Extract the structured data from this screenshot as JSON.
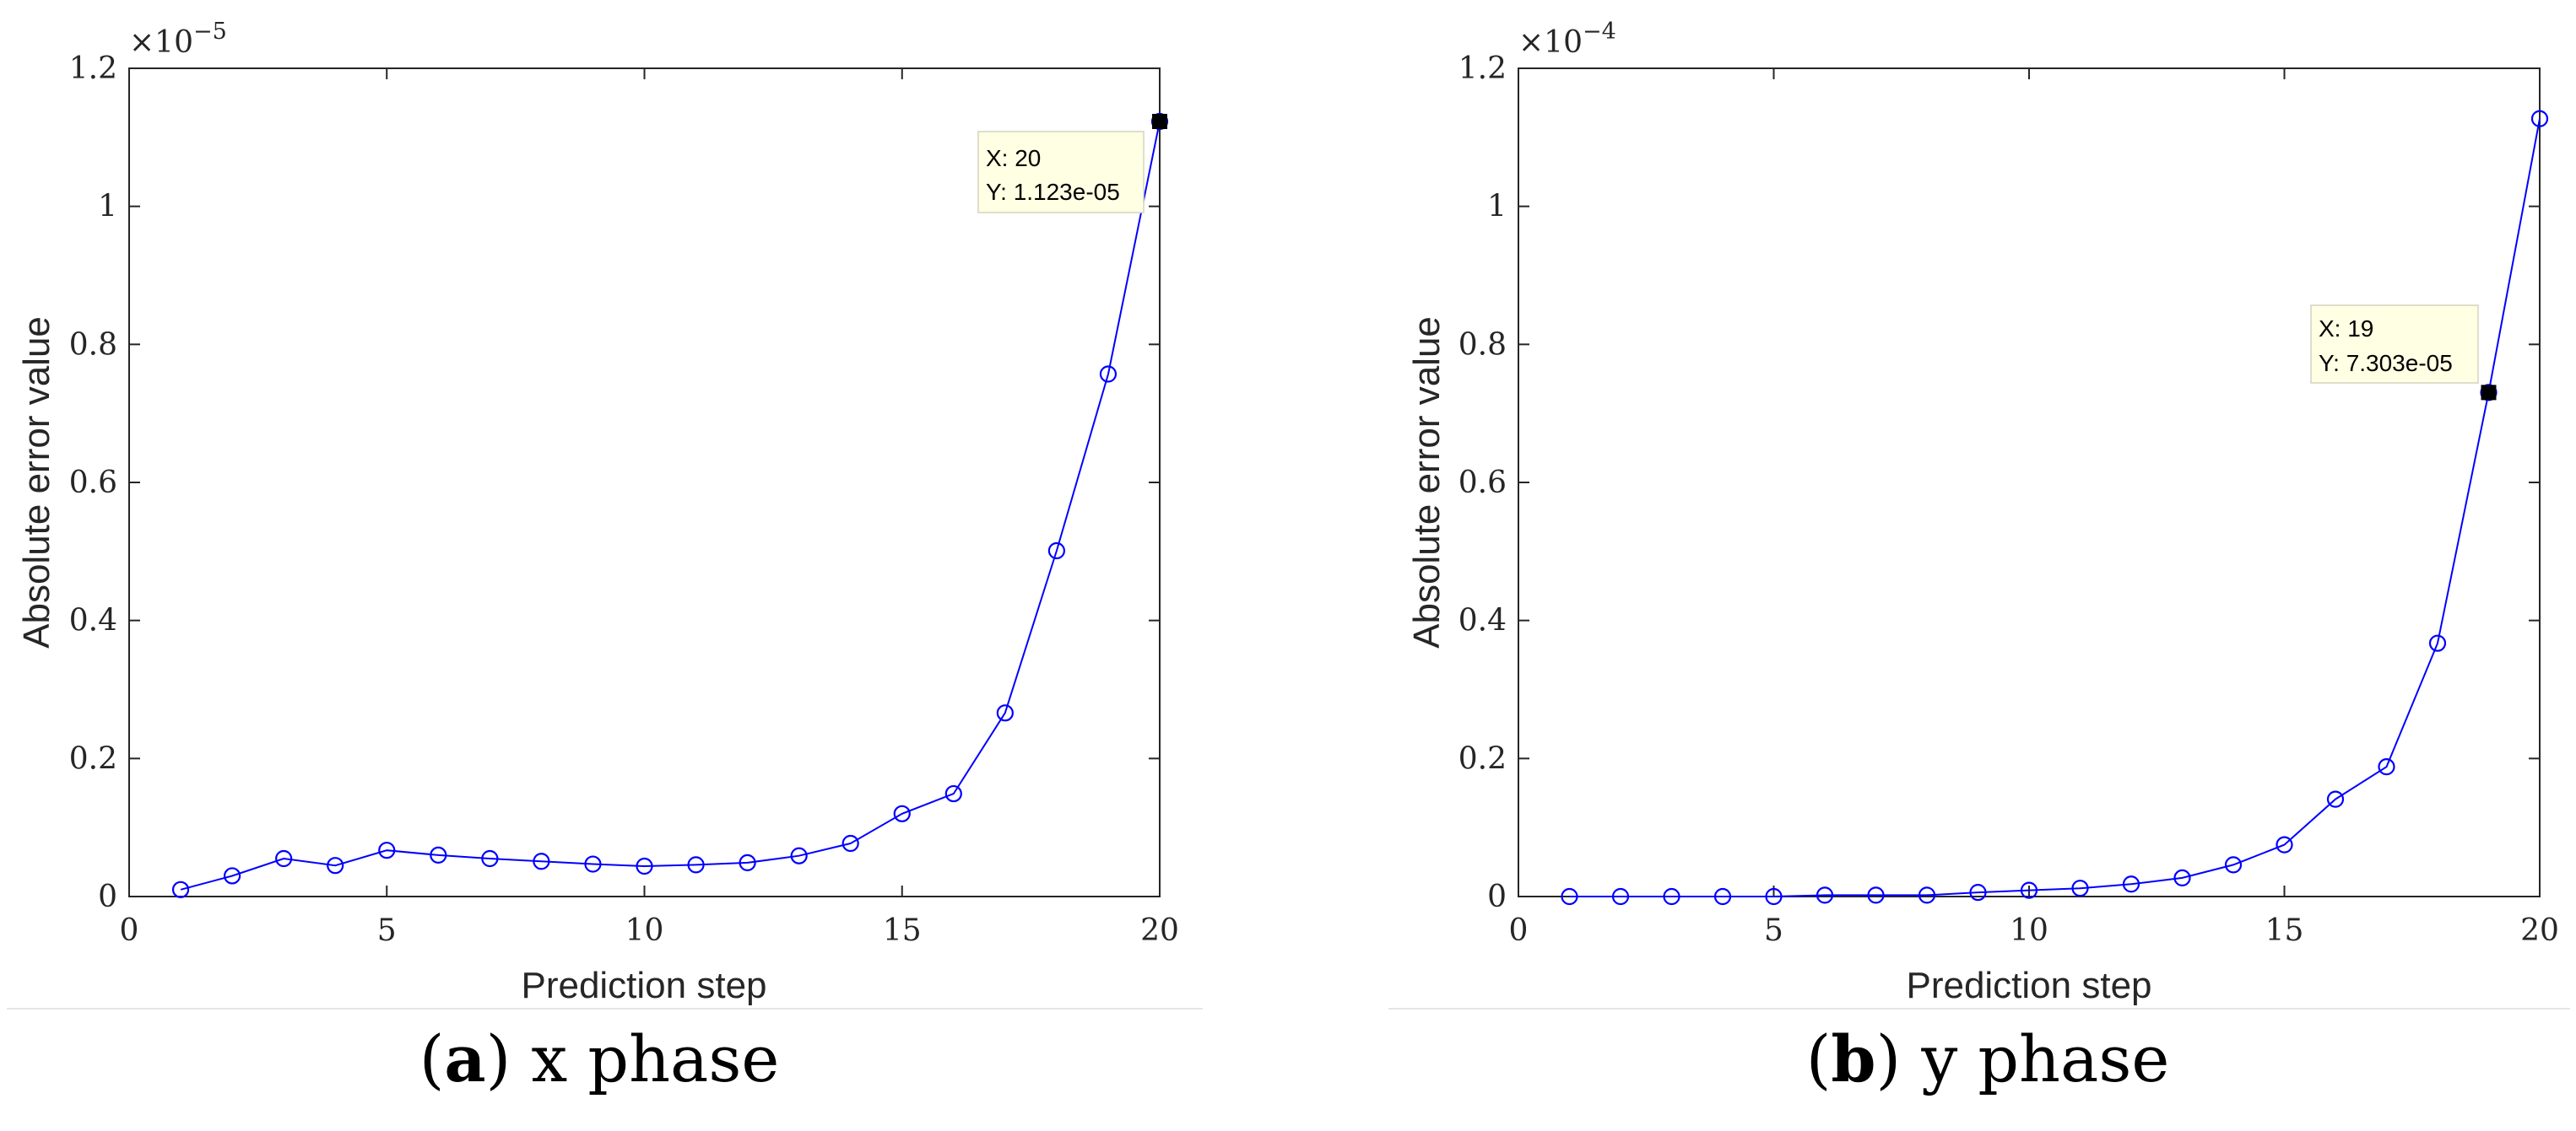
{
  "chart_data": [
    {
      "type": "line",
      "panel_letter": "a",
      "caption": "x phase",
      "xlabel": "Prediction step",
      "ylabel": "Absolute error value",
      "xlim": [
        0,
        20
      ],
      "ylim": [
        0,
        1.2
      ],
      "xticks": [
        0,
        5,
        10,
        15,
        20
      ],
      "yticks": [
        0,
        0.2,
        0.4,
        0.6,
        0.8,
        1,
        1.2
      ],
      "xtick_labels": [
        "0",
        "5",
        "10",
        "15",
        "20"
      ],
      "ytick_labels": [
        "0",
        "0.2",
        "0.4",
        "0.6",
        "0.8",
        "1",
        "1.2"
      ],
      "y_exponent_base": "×10",
      "y_exponent": "−5",
      "series": [
        {
          "name": "absolute error",
          "color": "#0000ff",
          "marker": "circle",
          "x": [
            1,
            2,
            3,
            4,
            5,
            6,
            7,
            8,
            9,
            10,
            11,
            12,
            13,
            14,
            15,
            16,
            17,
            18,
            19,
            20
          ],
          "y": [
            0.01,
            0.03,
            0.055,
            0.045,
            0.067,
            0.06,
            0.055,
            0.051,
            0.047,
            0.044,
            0.046,
            0.049,
            0.059,
            0.077,
            0.12,
            0.149,
            0.266,
            0.501,
            0.757,
            1.123
          ]
        }
      ],
      "datatip": {
        "x": 20,
        "y": 1.123,
        "line1": "X: 20",
        "line2": "Y: 1.123e-05"
      }
    },
    {
      "type": "line",
      "panel_letter": "b",
      "caption": "y phase",
      "xlabel": "Prediction step",
      "ylabel": "Absolute error value",
      "xlim": [
        0,
        20
      ],
      "ylim": [
        0,
        1.2
      ],
      "xticks": [
        0,
        5,
        10,
        15,
        20
      ],
      "yticks": [
        0,
        0.2,
        0.4,
        0.6,
        0.8,
        1,
        1.2
      ],
      "xtick_labels": [
        "0",
        "5",
        "10",
        "15",
        "20"
      ],
      "ytick_labels": [
        "0",
        "0.2",
        "0.4",
        "0.6",
        "0.8",
        "1",
        "1.2"
      ],
      "y_exponent_base": "×10",
      "y_exponent": "−4",
      "series": [
        {
          "name": "absolute error",
          "color": "#0000ff",
          "marker": "circle",
          "x": [
            1,
            2,
            3,
            4,
            5,
            6,
            7,
            8,
            9,
            10,
            11,
            12,
            13,
            14,
            15,
            16,
            17,
            18,
            19,
            20
          ],
          "y": [
            0.0,
            0.0,
            0.0,
            0.0,
            0.0,
            0.002,
            0.002,
            0.002,
            0.006,
            0.009,
            0.012,
            0.018,
            0.027,
            0.046,
            0.075,
            0.141,
            0.188,
            0.367,
            0.7303,
            1.127
          ]
        }
      ],
      "datatip": {
        "x": 19,
        "y": 0.7303,
        "line1": "X: 19",
        "line2": "Y: 7.303e-05"
      }
    }
  ]
}
